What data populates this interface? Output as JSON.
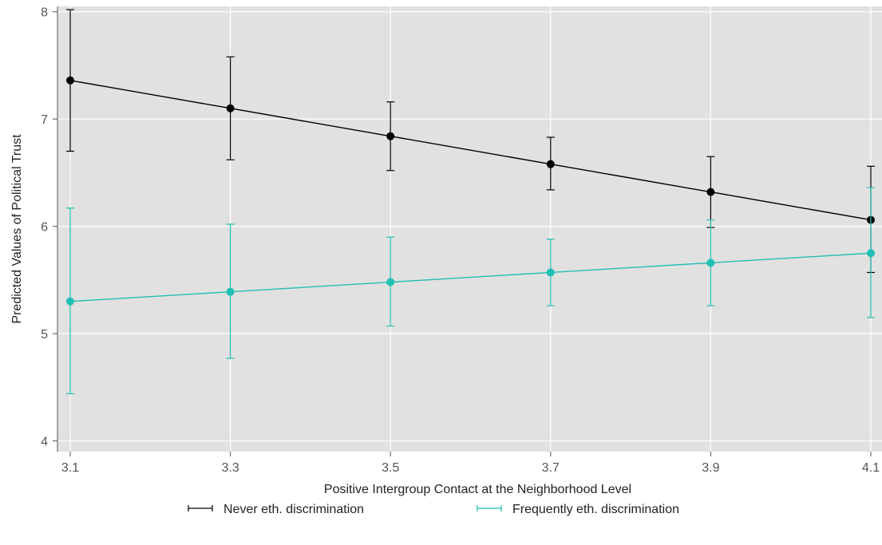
{
  "chart_data": {
    "type": "line",
    "title": "",
    "xlabel": "Positive Intergroup Contact at the Neighborhood Level",
    "ylabel": "Predicted Values of Political Trust",
    "x": [
      3.1,
      3.3,
      3.5,
      3.7,
      3.9,
      4.1
    ],
    "x_tick_labels": [
      "3.1",
      "3.3",
      "3.5",
      "3.7",
      "3.9",
      "4.1"
    ],
    "y_ticks": [
      4,
      5,
      6,
      7,
      8
    ],
    "y_tick_labels": [
      "4",
      "5",
      "6",
      "7",
      "8"
    ],
    "xlim": [
      3.1,
      4.1
    ],
    "ylim": [
      3.9,
      8.05
    ],
    "grid": true,
    "legend_position": "bottom",
    "background_color": "#e1e1e1",
    "series": [
      {
        "name": "Never eth. discrimination",
        "color": "#000000",
        "values": [
          7.36,
          7.1,
          6.84,
          6.58,
          6.32,
          6.06
        ],
        "ci_lower": [
          6.7,
          6.62,
          6.52,
          6.34,
          5.99,
          5.57
        ],
        "ci_upper": [
          8.02,
          7.58,
          7.16,
          6.83,
          6.65,
          6.56
        ]
      },
      {
        "name": "Frequently eth. discrimination",
        "color": "#20c0b4",
        "values": [
          5.3,
          5.39,
          5.48,
          5.57,
          5.66,
          5.75
        ],
        "ci_lower": [
          4.44,
          4.77,
          5.07,
          5.26,
          5.26,
          5.15
        ],
        "ci_upper": [
          6.17,
          6.02,
          5.9,
          5.88,
          6.06,
          6.36
        ]
      }
    ]
  }
}
